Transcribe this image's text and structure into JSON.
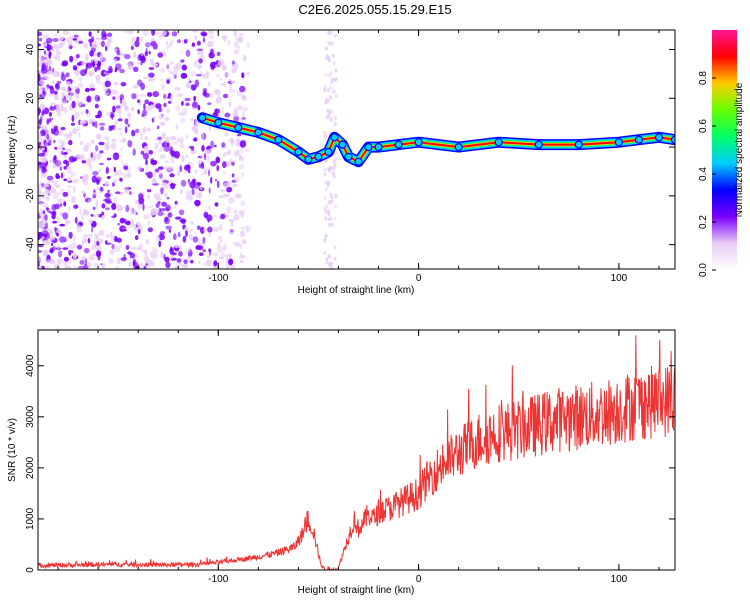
{
  "title": "C2E6.2025.055.15.29.E15",
  "colors": {
    "snr_line": "#ee3333",
    "colormap": [
      "#e8ccf5",
      "#7a00ff",
      "#0000ff",
      "#00ccff",
      "#00ff66",
      "#66ff00",
      "#ffcc00",
      "#ff0000",
      "#ff1493"
    ]
  },
  "chart_data": [
    {
      "type": "heatmap",
      "title": "C2E6.2025.055.15.29.E15",
      "xlabel": "Height of straight line (km)",
      "ylabel": "Frequency (Hz)",
      "xlim": [
        -190,
        128
      ],
      "ylim": [
        -50,
        48
      ],
      "x_ticks": [
        -100,
        0,
        100
      ],
      "y_ticks": [
        -40,
        -20,
        0,
        20,
        40
      ],
      "colorbar": {
        "label": "Normalized spectral amplitude",
        "range": [
          0,
          1
        ],
        "ticks": [
          0.0,
          0.2,
          0.4,
          0.6,
          0.8
        ]
      },
      "ridge": {
        "name": "dominant frequency track",
        "x": [
          -108,
          -100,
          -90,
          -80,
          -70,
          -60,
          -55,
          -50,
          -45,
          -42,
          -38,
          -35,
          -30,
          -25,
          -20,
          -10,
          0,
          20,
          40,
          60,
          80,
          100,
          110,
          120,
          128
        ],
        "y": [
          12,
          10,
          8,
          6,
          3,
          -2,
          -5,
          -4,
          -2,
          4,
          1,
          -4,
          -6,
          0,
          0,
          1,
          2,
          0,
          2,
          1,
          1,
          2,
          3,
          4,
          3
        ]
      }
    },
    {
      "type": "line",
      "xlabel": "Height of straight line (km)",
      "ylabel": "SNR (10 * v/v)",
      "xlim": [
        -190,
        128
      ],
      "ylim": [
        0,
        4700
      ],
      "x_ticks": [
        -100,
        0,
        100
      ],
      "y_ticks": [
        0,
        1000,
        2000,
        3000,
        4000
      ],
      "series": [
        {
          "x": [
            -190,
            -170,
            -150,
            -130,
            -110,
            -100,
            -90,
            -80,
            -70,
            -62,
            -58,
            -55,
            -52,
            -50,
            -48,
            -45,
            -42,
            -40,
            -38,
            -35,
            -32,
            -30,
            -28,
            -25,
            -22,
            -20,
            -15,
            -10,
            0,
            5,
            10,
            15,
            20,
            30,
            40,
            50,
            60,
            70,
            80,
            90,
            100,
            110,
            120,
            128
          ],
          "y": [
            90,
            100,
            110,
            100,
            110,
            150,
            200,
            260,
            340,
            450,
            700,
            1000,
            700,
            300,
            40,
            20,
            10,
            30,
            300,
            650,
            1000,
            800,
            900,
            1100,
            1000,
            1150,
            1200,
            1300,
            1500,
            1800,
            2000,
            2150,
            2300,
            2550,
            2700,
            2750,
            2850,
            2950,
            3000,
            3050,
            3150,
            3250,
            3300,
            3350
          ]
        }
      ]
    }
  ]
}
